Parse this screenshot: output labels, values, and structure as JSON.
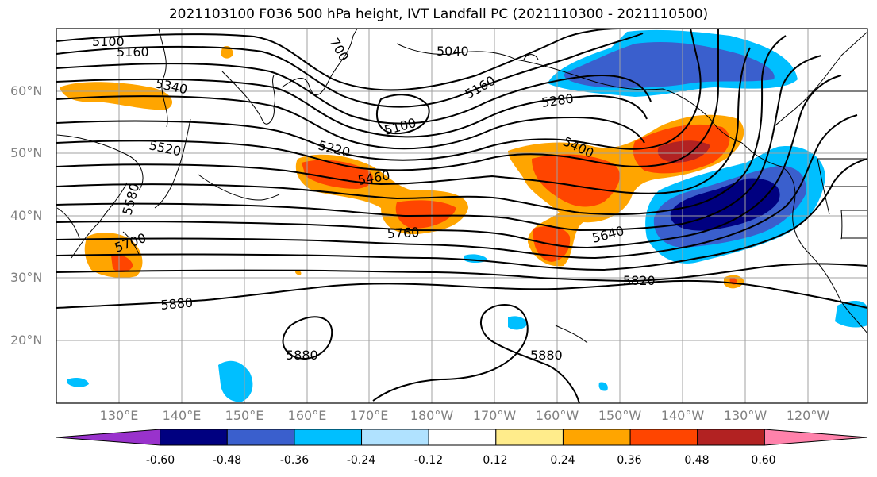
{
  "title": "2021103100 F036 500 hPa height, IVT Landfall PC (2021110300 - 2021110500)",
  "lat_labels": [
    "60°N",
    "50°N",
    "40°N",
    "30°N",
    "20°N"
  ],
  "lon_labels": [
    "130°E",
    "140°E",
    "150°E",
    "160°E",
    "170°E",
    "180°W",
    "170°W",
    "160°W",
    "150°W",
    "140°W",
    "130°W",
    "120°W"
  ],
  "contour_labels": [
    "5100",
    "5160",
    "5340",
    "5520",
    "5580",
    "5700",
    "5220",
    "5460",
    "5760",
    "5040",
    "5160",
    "5280",
    "5100",
    "5400",
    "5640",
    "5820",
    "5880",
    "5880",
    "5880",
    "700"
  ],
  "colorbar": {
    "ticks": [
      "-0.60",
      "-0.48",
      "-0.36",
      "-0.24",
      "-0.12",
      "0.12",
      "0.24",
      "0.36",
      "0.48",
      "0.60"
    ],
    "colors": [
      "#9932cc",
      "#000080",
      "#3a5fcd",
      "#00bfff",
      "#b0e2ff",
      "#ffffff",
      "#ffec8b",
      "#ffa500",
      "#ff4500",
      "#b22222",
      "#ff82ab"
    ]
  }
}
